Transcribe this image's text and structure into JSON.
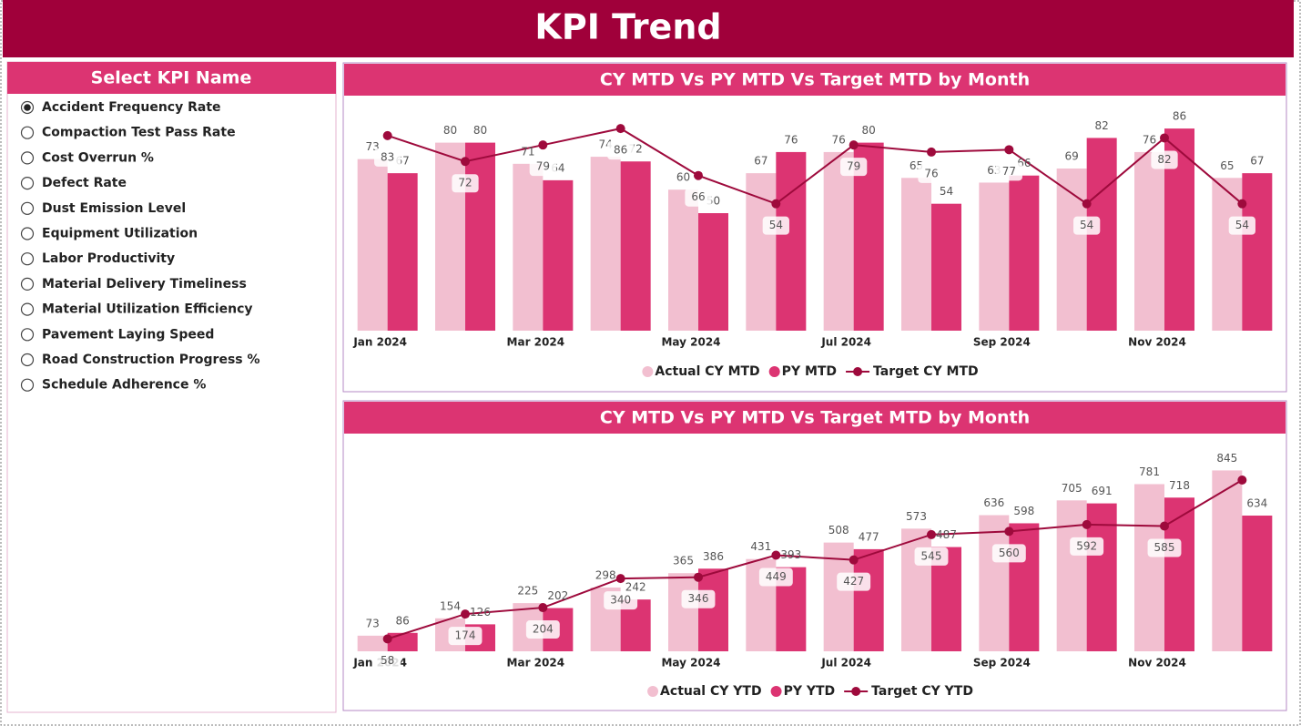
{
  "header": {
    "title": "KPI Trend"
  },
  "slicer": {
    "title": "Select KPI Name",
    "selected": 0,
    "items": [
      "Accident Frequency Rate",
      "Compaction Test Pass Rate",
      "Cost Overrun %",
      "Defect Rate",
      "Dust Emission Level",
      "Equipment Utilization",
      "Labor Productivity",
      "Material Delivery Timeliness",
      "Material Utilization Efficiency",
      "Pavement Laying Speed",
      "Road Construction Progress %",
      "Schedule Adherence %"
    ]
  },
  "chart_data": [
    {
      "type": "combo",
      "title": "CY MTD Vs PY MTD Vs Target MTD by Month",
      "categories": [
        "Jan 2024",
        null,
        "Mar 2024",
        null,
        "May 2024",
        null,
        "Jul 2024",
        null,
        "Sep 2024",
        null,
        "Nov 2024",
        null
      ],
      "ylim": [
        0,
        100
      ],
      "series": [
        {
          "name": "Actual CY MTD",
          "type": "bar",
          "color": "#f2bfd0",
          "values": [
            73,
            80,
            71,
            74,
            60,
            67,
            76,
            65,
            63,
            69,
            76,
            65
          ]
        },
        {
          "name": "PY MTD",
          "type": "bar",
          "color": "#dc3472",
          "values": [
            67,
            80,
            64,
            72,
            50,
            76,
            80,
            54,
            66,
            82,
            86,
            67
          ]
        },
        {
          "name": "Target CY MTD",
          "type": "line",
          "color": "#9e0a3c",
          "values": [
            83,
            72,
            79,
            86,
            66,
            54,
            79,
            76,
            77,
            54,
            82,
            54
          ]
        }
      ]
    },
    {
      "type": "combo",
      "title": "CY MTD Vs PY MTD Vs Target MTD by Month",
      "categories": [
        "Jan 2024",
        null,
        "Mar 2024",
        null,
        "May 2024",
        null,
        "Jul 2024",
        null,
        "Sep 2024",
        null,
        "Nov 2024",
        null
      ],
      "ylim": [
        0,
        1000
      ],
      "series": [
        {
          "name": "Actual CY YTD",
          "type": "bar",
          "color": "#f2bfd0",
          "values": [
            73,
            154,
            225,
            298,
            365,
            431,
            508,
            573,
            636,
            705,
            781,
            845
          ]
        },
        {
          "name": "PY YTD",
          "type": "bar",
          "color": "#dc3472",
          "values": [
            86,
            126,
            202,
            242,
            386,
            393,
            477,
            487,
            598,
            691,
            718,
            634
          ]
        },
        {
          "name": "Target CY YTD",
          "type": "line",
          "color": "#9e0a3c",
          "values": [
            58,
            174,
            204,
            340,
            346,
            449,
            427,
            545,
            560,
            592,
            585,
            800
          ],
          "value_labels": [
            "58",
            "174",
            "204",
            "340",
            "346",
            "449",
            "427",
            "545",
            "560",
            "592",
            "585",
            null
          ]
        }
      ]
    }
  ]
}
